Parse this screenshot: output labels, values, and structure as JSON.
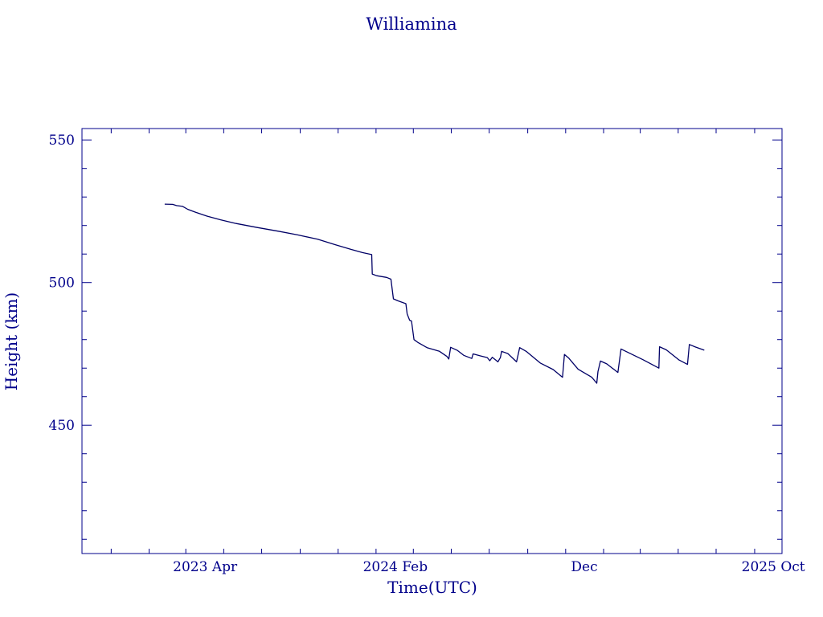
{
  "chart_data": {
    "type": "line",
    "title": "Williamina",
    "xlabel": "Time(UTC)",
    "ylabel": "Height (km)",
    "ylim": [
      405,
      554
    ],
    "xlim": [
      "2022-09-15",
      "2025-10-15"
    ],
    "x_ticks": [
      {
        "date": "2023-04-01",
        "label": "2023 Apr"
      },
      {
        "date": "2024-02-01",
        "label": "2024 Feb"
      },
      {
        "date": "2024-12-01",
        "label": "Dec"
      },
      {
        "date": "2025-10-01",
        "label": "2025 Oct"
      }
    ],
    "y_ticks": [
      {
        "value": 550,
        "label": "550"
      },
      {
        "value": 500,
        "label": "500"
      },
      {
        "value": 450,
        "label": "450"
      }
    ],
    "grid": false,
    "colors": {
      "axes": "#00008b",
      "line": "#000066"
    },
    "series": [
      {
        "points": [
          [
            "2023-01-26",
            527.5
          ],
          [
            "2023-02-08",
            527.4
          ],
          [
            "2023-02-14",
            527.0
          ],
          [
            "2023-02-24",
            526.7
          ],
          [
            "2023-03-04",
            525.7
          ],
          [
            "2023-03-16",
            524.7
          ],
          [
            "2023-04-04",
            523.3
          ],
          [
            "2023-04-26",
            522.0
          ],
          [
            "2023-05-21",
            520.7
          ],
          [
            "2023-06-24",
            519.3
          ],
          [
            "2023-07-28",
            518.0
          ],
          [
            "2023-08-28",
            516.7
          ],
          [
            "2023-09-29",
            515.2
          ],
          [
            "2023-10-27",
            513.3
          ],
          [
            "2023-11-21",
            511.7
          ],
          [
            "2023-12-10",
            510.5
          ],
          [
            "2023-12-25",
            509.8
          ],
          [
            "2023-12-26",
            503.0
          ],
          [
            "2024-01-02",
            502.4
          ],
          [
            "2024-01-18",
            501.8
          ],
          [
            "2024-01-25",
            501.2
          ],
          [
            "2024-01-29",
            494.3
          ],
          [
            "2024-02-05",
            493.6
          ],
          [
            "2024-02-18",
            492.6
          ],
          [
            "2024-02-20",
            489.0
          ],
          [
            "2024-02-24",
            486.8
          ],
          [
            "2024-02-27",
            486.5
          ],
          [
            "2024-03-02",
            480.0
          ],
          [
            "2024-03-09",
            478.9
          ],
          [
            "2024-03-23",
            477.2
          ],
          [
            "2024-04-12",
            475.9
          ],
          [
            "2024-04-24",
            474.1
          ],
          [
            "2024-04-27",
            473.2
          ],
          [
            "2024-04-30",
            477.3
          ],
          [
            "2024-05-11",
            476.2
          ],
          [
            "2024-05-21",
            474.5
          ],
          [
            "2024-06-03",
            473.4
          ],
          [
            "2024-06-05",
            475.0
          ],
          [
            "2024-06-17",
            474.3
          ],
          [
            "2024-06-28",
            473.7
          ],
          [
            "2024-07-02",
            472.6
          ],
          [
            "2024-07-06",
            473.8
          ],
          [
            "2024-07-13",
            472.6
          ],
          [
            "2024-07-15",
            472.2
          ],
          [
            "2024-07-19",
            473.7
          ],
          [
            "2024-07-21",
            475.9
          ],
          [
            "2024-07-31",
            475.1
          ],
          [
            "2024-08-14",
            472.2
          ],
          [
            "2024-08-19",
            477.2
          ],
          [
            "2024-08-30",
            475.8
          ],
          [
            "2024-09-21",
            471.8
          ],
          [
            "2024-10-12",
            469.5
          ],
          [
            "2024-10-27",
            466.8
          ],
          [
            "2024-10-30",
            474.8
          ],
          [
            "2024-11-06",
            473.5
          ],
          [
            "2024-11-21",
            469.6
          ],
          [
            "2024-12-13",
            466.8
          ],
          [
            "2024-12-21",
            464.7
          ],
          [
            "2024-12-23",
            468.8
          ],
          [
            "2024-12-27",
            472.5
          ],
          [
            "2025-01-06",
            471.5
          ],
          [
            "2025-01-24",
            468.5
          ],
          [
            "2025-01-29",
            476.7
          ],
          [
            "2025-03-05",
            473.0
          ],
          [
            "2025-03-31",
            470.0
          ],
          [
            "2025-04-01",
            477.5
          ],
          [
            "2025-04-12",
            476.4
          ],
          [
            "2025-05-02",
            472.9
          ],
          [
            "2025-05-16",
            471.3
          ],
          [
            "2025-05-19",
            478.3
          ],
          [
            "2025-05-29",
            477.4
          ],
          [
            "2025-06-12",
            476.3
          ]
        ]
      }
    ]
  }
}
